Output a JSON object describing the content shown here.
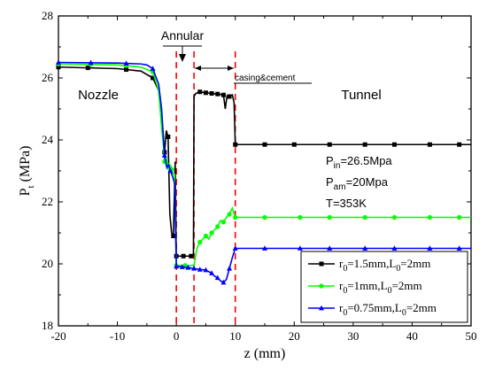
{
  "chart_data": {
    "type": "line",
    "title": "",
    "xlabel": "z (mm)",
    "ylabel": "P_t (MPa)",
    "xlim": [
      -20,
      50
    ],
    "ylim": [
      18,
      28
    ],
    "xticks": [
      -20,
      -10,
      0,
      10,
      20,
      30,
      40,
      50
    ],
    "yticks": [
      18,
      20,
      22,
      24,
      26,
      28
    ],
    "grid": false,
    "legend_position": "bottom-right",
    "colors": {
      "axis": "#000000",
      "divider": "#ff0000"
    },
    "dividers": [
      0,
      3,
      10
    ],
    "series": [
      {
        "name": "r0=1.5mm,L0=2mm",
        "legend": {
          "r": "r",
          "r_sub": "0",
          "mid": "=1.5mm,L",
          "l_sub": "0",
          "tail": "=2mm"
        },
        "color": "#000000",
        "marker": "square",
        "x": [
          -20,
          -10,
          -6,
          -4,
          -3,
          -2.5,
          -2,
          -1.7,
          -1.4,
          -1.1,
          -0.8,
          -0.5,
          -0.2,
          0,
          0.5,
          1,
          2,
          2.9,
          3,
          3.3,
          4,
          5,
          6,
          7,
          8,
          8.3,
          8.6,
          9,
          9.5,
          9.8,
          10,
          12,
          20,
          30,
          40,
          50
        ],
        "y": [
          26.35,
          26.3,
          26.22,
          26.0,
          25.6,
          24.8,
          23.6,
          24.3,
          24.1,
          21.6,
          21.0,
          20.9,
          23.3,
          20.25,
          20.25,
          20.25,
          20.25,
          20.25,
          25.4,
          25.5,
          25.55,
          25.52,
          25.5,
          25.48,
          25.45,
          25.0,
          25.42,
          25.4,
          25.45,
          25.2,
          23.85,
          23.85,
          23.85,
          23.85,
          23.85,
          23.85
        ],
        "markers_x": [
          -20,
          -15,
          -8.5,
          -4,
          -2,
          -1.4,
          -0.5,
          0,
          1.2,
          2.5,
          4,
          5,
          6,
          7,
          8,
          9,
          10,
          15,
          20,
          26,
          32,
          37,
          43,
          48
        ]
      },
      {
        "name": "r0=1mm,L0=2mm",
        "legend": {
          "r": "r",
          "r_sub": "0",
          "mid": "=1mm,L",
          "l_sub": "0",
          "tail": "=2mm"
        },
        "color": "#00ff00",
        "marker": "circle",
        "x": [
          -20,
          -10,
          -6,
          -4,
          -3,
          -2.5,
          -2.2,
          -2,
          -1.7,
          -1.4,
          -1.2,
          -1,
          -0.6,
          -0.3,
          0,
          1,
          2,
          3,
          3.5,
          4,
          4.5,
          5,
          5.5,
          6,
          6.5,
          7,
          7.5,
          8,
          8.5,
          9,
          9.5,
          10,
          12,
          20,
          30,
          40,
          50
        ],
        "y": [
          26.45,
          26.42,
          26.35,
          26.2,
          25.6,
          24.4,
          23.8,
          23.3,
          23.4,
          23.1,
          23.0,
          23.2,
          22.9,
          22.9,
          19.95,
          19.95,
          19.95,
          19.95,
          20.5,
          20.7,
          20.8,
          20.9,
          20.8,
          21.0,
          21.1,
          21.2,
          21.4,
          21.35,
          21.5,
          21.6,
          21.8,
          21.5,
          21.5,
          21.5,
          21.5,
          21.5,
          21.5
        ],
        "markers_x": [
          -20,
          -14.5,
          -8.5,
          -4,
          -2,
          -1.5,
          -0.8,
          0,
          1.5,
          4,
          5,
          6,
          7,
          8,
          9,
          10,
          15,
          21,
          26,
          32,
          37,
          43,
          48
        ]
      },
      {
        "name": "r0=0.75mm,L0=2mm",
        "legend": {
          "r": "r",
          "r_sub": "0",
          "mid": "=0.75mm,L",
          "l_sub": "0",
          "tail": "=2mm"
        },
        "color": "#0000ff",
        "marker": "triangle",
        "x": [
          -20,
          -10,
          -6,
          -5,
          -4,
          -3,
          -2.5,
          -2,
          -1.6,
          -1.3,
          -1,
          -0.6,
          -0.3,
          0,
          1,
          2,
          3,
          4,
          5,
          6,
          6.5,
          7,
          7.5,
          8,
          8.5,
          9,
          9.5,
          10,
          12,
          20,
          30,
          40,
          50
        ],
        "y": [
          26.5,
          26.48,
          26.45,
          26.42,
          26.3,
          25.8,
          25.0,
          23.5,
          23.1,
          23.2,
          23.0,
          22.8,
          22.6,
          19.92,
          19.9,
          19.88,
          19.85,
          19.82,
          19.8,
          19.7,
          19.6,
          19.55,
          19.45,
          19.4,
          19.5,
          19.85,
          20.2,
          20.5,
          20.5,
          20.5,
          20.5,
          20.5,
          20.5
        ],
        "markers_x": [
          -20,
          -14.5,
          -8.5,
          -4,
          -2,
          -1,
          0,
          1,
          2,
          3,
          4,
          5,
          6,
          7,
          8,
          9,
          10,
          15,
          21,
          26,
          32,
          37,
          43,
          48
        ]
      }
    ],
    "annotations": {
      "nozzle": "Nozzle",
      "annular": "Annular",
      "casing": "casing&cement",
      "tunnel": "Tunnel",
      "conditions": [
        {
          "main": "P",
          "sub": "in",
          "tail": "=26.5Mpa"
        },
        {
          "main": "P",
          "sub": "am",
          "tail": "=20Mpa"
        },
        {
          "main": "T=353K",
          "sub": "",
          "tail": ""
        }
      ]
    }
  }
}
